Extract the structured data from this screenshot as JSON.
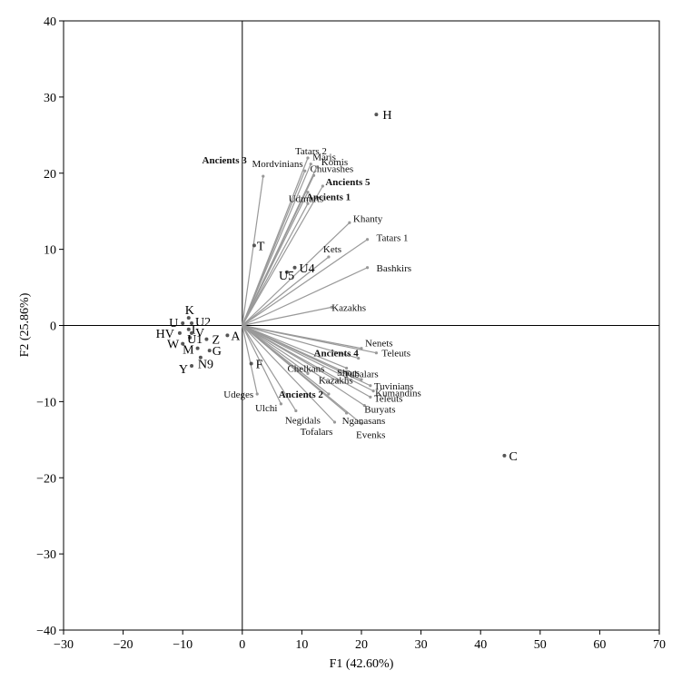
{
  "chart_data": {
    "type": "scatter",
    "xlabel": "F1 (42.60%)",
    "ylabel": "F2 (25.86%)",
    "xlim": [
      -30,
      70
    ],
    "ylim": [
      -40,
      40
    ],
    "xticks": [
      "−30",
      "−20",
      "−10",
      "0",
      "10",
      "20",
      "30",
      "40",
      "50",
      "60",
      "70"
    ],
    "yticks": [
      "−40",
      "−30",
      "−20",
      "−10",
      "0",
      "10",
      "20",
      "30",
      "40"
    ],
    "xtick_values": [
      -30,
      -20,
      -10,
      0,
      10,
      20,
      30,
      40,
      50,
      60,
      70
    ],
    "ytick_values": [
      -40,
      -30,
      -20,
      -10,
      0,
      10,
      20,
      30,
      40
    ],
    "grid": false,
    "colors": {
      "vector": "#999999",
      "point": "#555555",
      "axis": "#000000"
    },
    "variables": [
      {
        "label": "Tatars 2",
        "x": 11.0,
        "y": 22.0,
        "bold": false
      },
      {
        "label": "Maris",
        "x": 11.5,
        "y": 21.2,
        "bold": false
      },
      {
        "label": "Komis",
        "x": 12.5,
        "y": 20.8,
        "bold": false
      },
      {
        "label": "Mordvinians",
        "x": 10.5,
        "y": 20.3,
        "bold": false
      },
      {
        "label": "Chuvashes",
        "x": 12.0,
        "y": 19.7,
        "bold": false
      },
      {
        "label": "Ancients 3",
        "x": 3.5,
        "y": 19.6,
        "bold": true
      },
      {
        "label": "Ancients 5",
        "x": 13.5,
        "y": 18.3,
        "bold": true
      },
      {
        "label": "Udmurts",
        "x": 11.0,
        "y": 17.5,
        "bold": false
      },
      {
        "label": "Ancients 1",
        "x": 11.0,
        "y": 16.0,
        "bold": true
      },
      {
        "label": "Khanty",
        "x": 18.0,
        "y": 13.5,
        "bold": false
      },
      {
        "label": "Tatars 1",
        "x": 21.0,
        "y": 11.3,
        "bold": false
      },
      {
        "label": "Kets",
        "x": 14.5,
        "y": 9.0,
        "bold": false
      },
      {
        "label": "Bashkirs",
        "x": 21.0,
        "y": 7.6,
        "bold": false
      },
      {
        "label": "Kazakhs",
        "x": 15.0,
        "y": 2.4,
        "bold": false
      },
      {
        "label": "Nenets",
        "x": 20.0,
        "y": -3.0,
        "bold": false
      },
      {
        "label": "Ancients 4",
        "x": 19.5,
        "y": -4.3,
        "bold": true
      },
      {
        "label": "Teleuts",
        "x": 22.5,
        "y": -3.6,
        "bold": false
      },
      {
        "label": "Tubalars",
        "x": 17.5,
        "y": -5.6,
        "bold": false
      },
      {
        "label": "Chelkans",
        "x": 11.0,
        "y": -6.3,
        "bold": false
      },
      {
        "label": "Kazakhs",
        "x": 16.0,
        "y": -7.3,
        "bold": false
      },
      {
        "label": "Shors",
        "x": 20.0,
        "y": -7.1,
        "bold": false
      },
      {
        "label": "Tuvinians",
        "x": 21.5,
        "y": -7.9,
        "bold": false
      },
      {
        "label": "Kumandins",
        "x": 22.0,
        "y": -8.6,
        "bold": false
      },
      {
        "label": "Ancients 2",
        "x": 14.5,
        "y": -9.0,
        "bold": true
      },
      {
        "label": "Teleuts",
        "x": 21.5,
        "y": -9.4,
        "bold": false
      },
      {
        "label": "Buryats",
        "x": 20.5,
        "y": -10.5,
        "bold": false
      },
      {
        "label": "Udeges",
        "x": 2.5,
        "y": -9.0,
        "bold": false
      },
      {
        "label": "Ulchi",
        "x": 6.5,
        "y": -10.3,
        "bold": false
      },
      {
        "label": "Negidals",
        "x": 9.0,
        "y": -11.2,
        "bold": false
      },
      {
        "label": "Nganasans",
        "x": 17.5,
        "y": -11.5,
        "bold": false
      },
      {
        "label": "Tofalars",
        "x": 15.5,
        "y": -12.7,
        "bold": false
      },
      {
        "label": "Evenks",
        "x": 20.0,
        "y": -12.9,
        "bold": false
      }
    ],
    "observations": [
      {
        "label": "H",
        "x": 22.5,
        "y": 27.7
      },
      {
        "label": "T",
        "x": 2.0,
        "y": 10.5
      },
      {
        "label": "U4",
        "x": 8.8,
        "y": 7.6
      },
      {
        "label": "U5",
        "x": 7.5,
        "y": 7.0
      },
      {
        "label": "K",
        "x": -9.0,
        "y": 1.0
      },
      {
        "label": "U",
        "x": -10.0,
        "y": 0.3
      },
      {
        "label": "U2",
        "x": -8.5,
        "y": 0.3
      },
      {
        "label": "I",
        "x": -9.0,
        "y": -0.5
      },
      {
        "label": "HV",
        "x": -10.5,
        "y": -1.0
      },
      {
        "label": "V",
        "x": -8.5,
        "y": -1.0
      },
      {
        "label": "U1",
        "x": -8.8,
        "y": -1.6
      },
      {
        "label": "Z",
        "x": -6.0,
        "y": -1.8
      },
      {
        "label": "A",
        "x": -2.5,
        "y": -1.3
      },
      {
        "label": "W",
        "x": -10.0,
        "y": -2.4
      },
      {
        "label": "M",
        "x": -7.5,
        "y": -3.0
      },
      {
        "label": "G",
        "x": -5.5,
        "y": -3.3
      },
      {
        "label": "N9",
        "x": -7.0,
        "y": -4.2
      },
      {
        "label": "Y",
        "x": -8.5,
        "y": -5.3
      },
      {
        "label": "F",
        "x": 1.5,
        "y": -5.0
      },
      {
        "label": "C",
        "x": 44.0,
        "y": -17.1
      }
    ]
  }
}
